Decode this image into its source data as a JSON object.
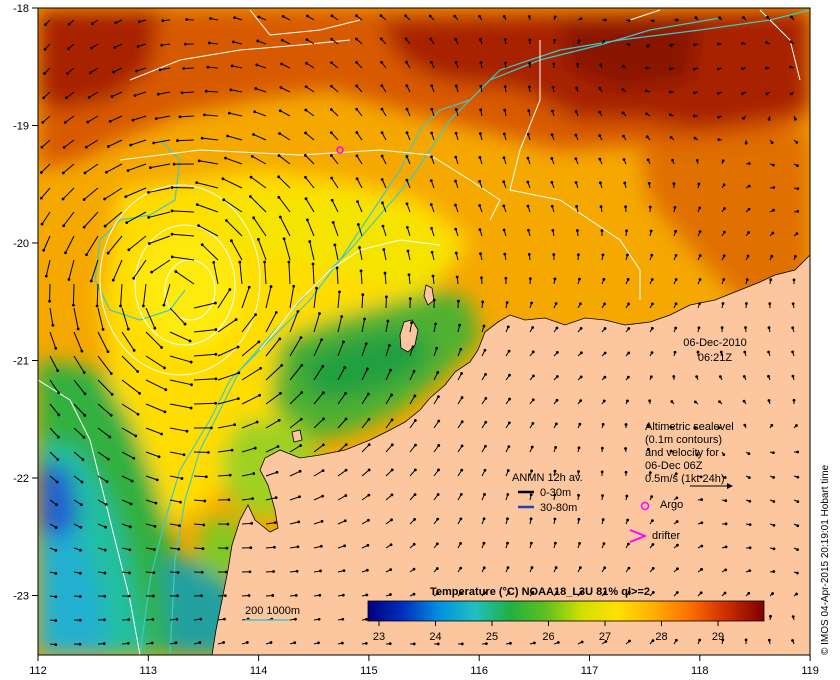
{
  "map": {
    "lon_ticks": [
      "112",
      "113",
      "114",
      "115",
      "116",
      "117",
      "118",
      "119"
    ],
    "lat_ticks": [
      "-18",
      "-19",
      "-20",
      "-21",
      "-22",
      "-23"
    ],
    "date": "06-Dec-2010",
    "time": "06:21Z",
    "altimetry_note": [
      "Altimetric sealevel",
      "(0.1m contours)",
      "and velocity for",
      "06-Dec 06Z",
      "0.5m/s (1kt 24h)"
    ],
    "anmn": {
      "title": "ANMN 12h av.",
      "items": [
        {
          "label": "0-30m",
          "color": "#000000"
        },
        {
          "label": "30-80m",
          "color": "#1f3fbf"
        }
      ]
    },
    "argo_label": "Argo",
    "drifter_label": "drifter",
    "isobath_label": "200  1000m",
    "colorbar": {
      "title": "Temperature (°C) NOAA18_L3U 81% ql>=2",
      "ticks": [
        "23",
        "24",
        "25",
        "26",
        "27",
        "28",
        "29"
      ],
      "stops": [
        "#00007f",
        "#0030c0",
        "#0090e0",
        "#20c0c0",
        "#20b040",
        "#60c020",
        "#d0e000",
        "#ffe000",
        "#ffb000",
        "#ff7000",
        "#d03000",
        "#800000"
      ]
    },
    "credit": "© IMOS 04-Apr-2015 20:19:01 Hobart time",
    "colors": {
      "land": "#fcc79f",
      "isobath": "#40c8c8",
      "contour": "#ffffff",
      "argo": "#ff00ff",
      "drifter": "#ff00ff"
    }
  }
}
